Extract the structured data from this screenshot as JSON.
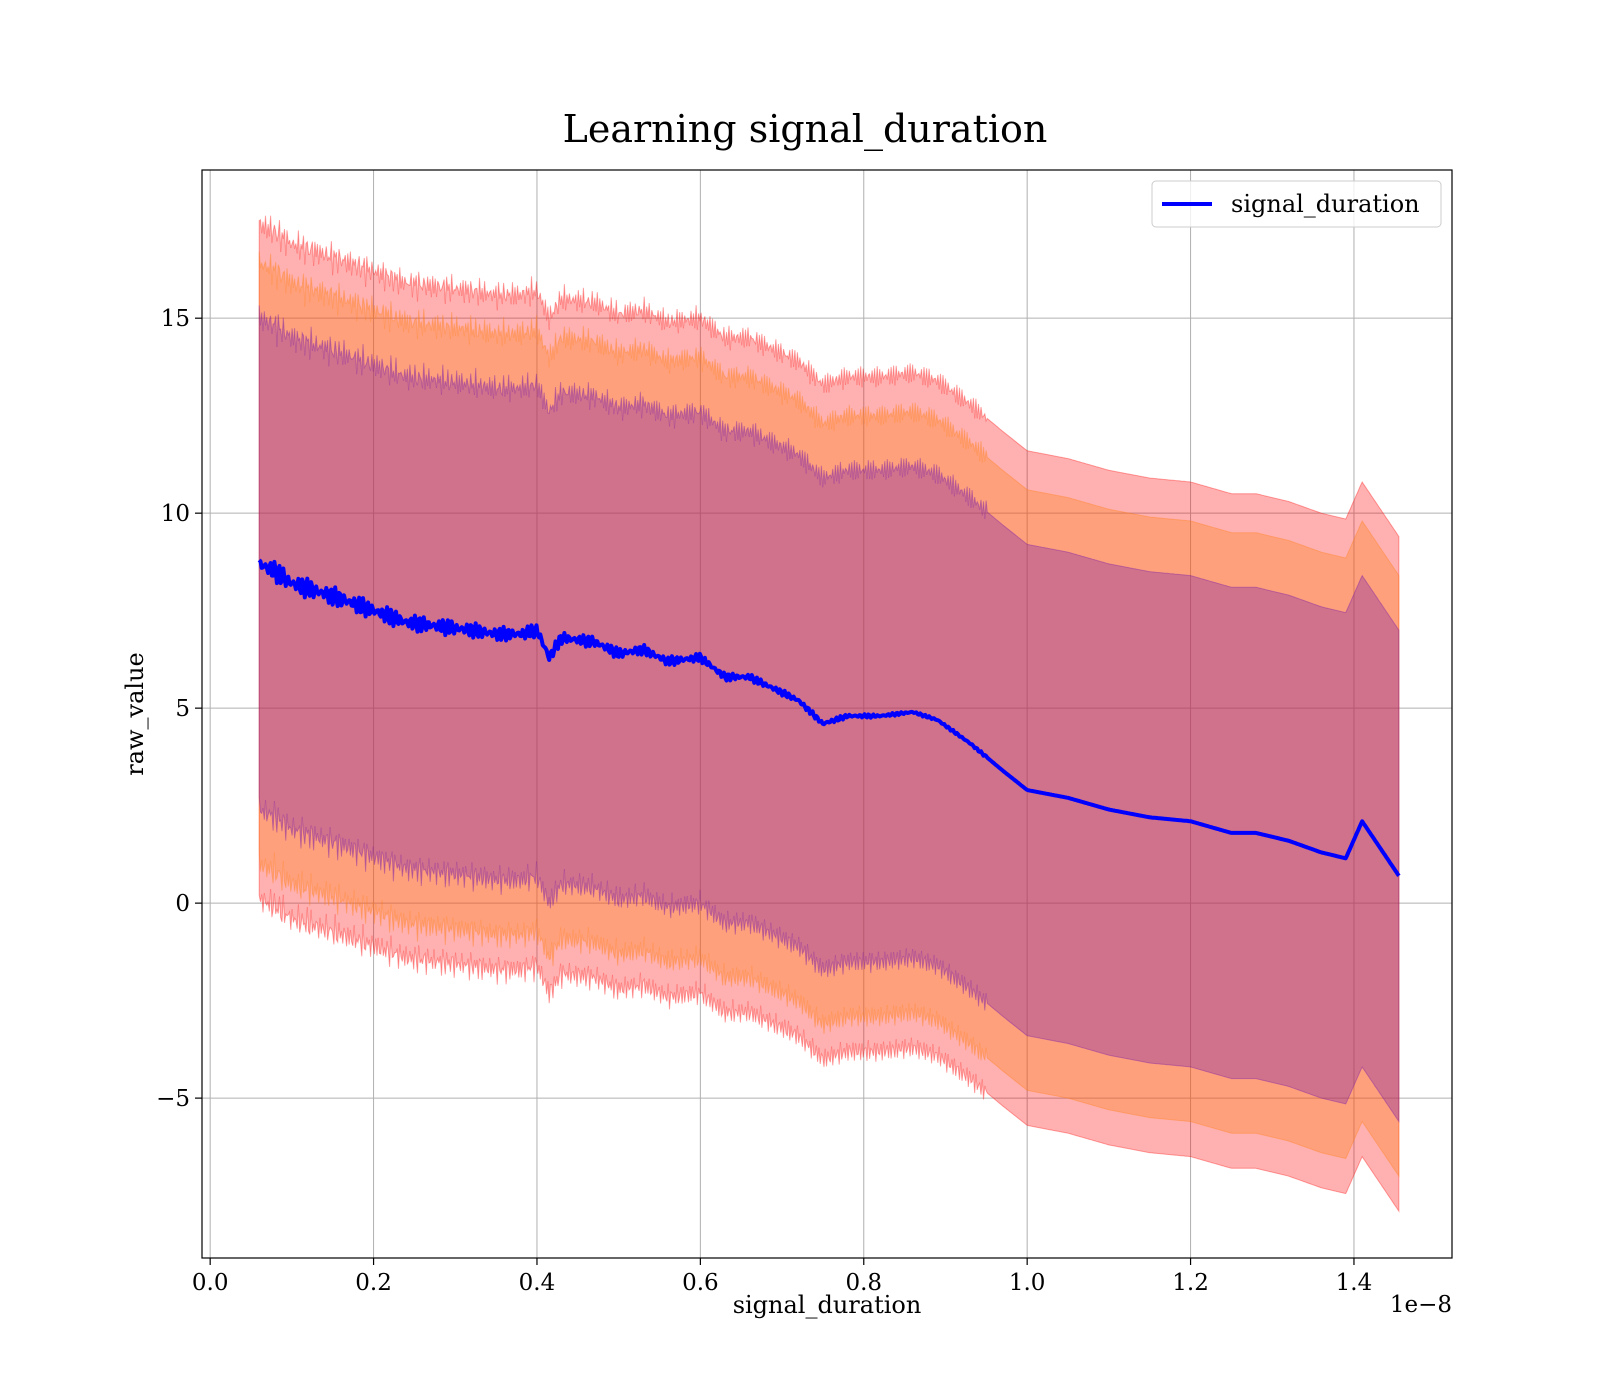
{
  "chart_data": {
    "type": "line",
    "title": "Learning signal_duration",
    "xlabel": "signal_duration",
    "ylabel": "raw_value",
    "x_offset_label": "1e−8",
    "xlim": [
      -0.01,
      1.52
    ],
    "ylim": [
      -9.1,
      18.8
    ],
    "x_ticks": [
      0.0,
      0.2,
      0.4,
      0.6,
      0.8,
      1.0,
      1.2,
      1.4
    ],
    "x_tick_labels": [
      "0.0",
      "0.2",
      "0.4",
      "0.6",
      "0.8",
      "1.0",
      "1.2",
      "1.4"
    ],
    "y_ticks": [
      -5,
      0,
      5,
      10,
      15
    ],
    "y_tick_labels": [
      "−5",
      "0",
      "5",
      "10",
      "15"
    ],
    "grid": true,
    "legend": {
      "position": "top-right",
      "entries": [
        "signal_duration"
      ]
    },
    "series": [
      {
        "name": "signal_duration",
        "color": "#0000ff",
        "x": [
          0.06,
          0.08,
          0.1,
          0.13,
          0.16,
          0.2,
          0.24,
          0.28,
          0.32,
          0.35,
          0.38,
          0.4,
          0.415,
          0.43,
          0.47,
          0.5,
          0.53,
          0.56,
          0.6,
          0.63,
          0.66,
          0.7,
          0.72,
          0.75,
          0.78,
          0.82,
          0.86,
          0.89,
          0.93,
          0.97,
          1.0,
          1.05,
          1.1,
          1.15,
          1.2,
          1.25,
          1.28,
          1.32,
          1.36,
          1.39,
          1.41,
          1.455
        ],
        "y": [
          8.7,
          8.5,
          8.2,
          8.0,
          7.8,
          7.5,
          7.2,
          7.1,
          7.0,
          6.9,
          6.9,
          7.0,
          6.3,
          6.8,
          6.7,
          6.4,
          6.5,
          6.2,
          6.3,
          5.8,
          5.8,
          5.4,
          5.2,
          4.6,
          4.8,
          4.8,
          4.9,
          4.7,
          4.1,
          3.4,
          2.9,
          2.7,
          2.4,
          2.2,
          2.1,
          1.8,
          1.8,
          1.6,
          1.3,
          1.15,
          2.1,
          0.7
        ]
      }
    ],
    "bands": [
      {
        "name": "",
        "color": "#ff0000",
        "opacity": 0.31,
        "offset": [
          -8.6,
          8.7
        ]
      },
      {
        "name": "",
        "color": "#ff7f0e",
        "opacity": 0.31,
        "offset": [
          -7.7,
          7.7
        ]
      },
      {
        "name": "",
        "color": "#6a0dad",
        "opacity": 0.31,
        "offset": [
          -6.3,
          6.3
        ]
      }
    ]
  }
}
